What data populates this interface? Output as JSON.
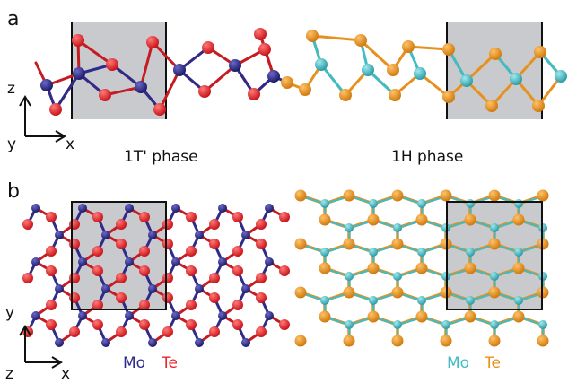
{
  "panels": {
    "a": {
      "letter": "a",
      "axis_vertical": "z",
      "axis_horizontal": "x",
      "axis_out_of_plane": "y"
    },
    "b": {
      "letter": "b",
      "axis_vertical": "y",
      "axis_horizontal": "x",
      "axis_out_of_plane": "z"
    }
  },
  "phase_labels": {
    "left": "1T' phase",
    "right": "1H phase"
  },
  "legend": {
    "left": {
      "metal": "Mo",
      "chalcogen": "Te"
    },
    "right": {
      "metal": "Mo",
      "chalcogen": "Te"
    }
  },
  "colors": {
    "mo_1t": "#2e2b8a",
    "te_1t": "#e8262a",
    "mo_1h": "#3fbcc6",
    "te_1h": "#e8901c",
    "unit_cell_fill": "#c9cacd",
    "unit_cell_edge": "#111111"
  }
}
